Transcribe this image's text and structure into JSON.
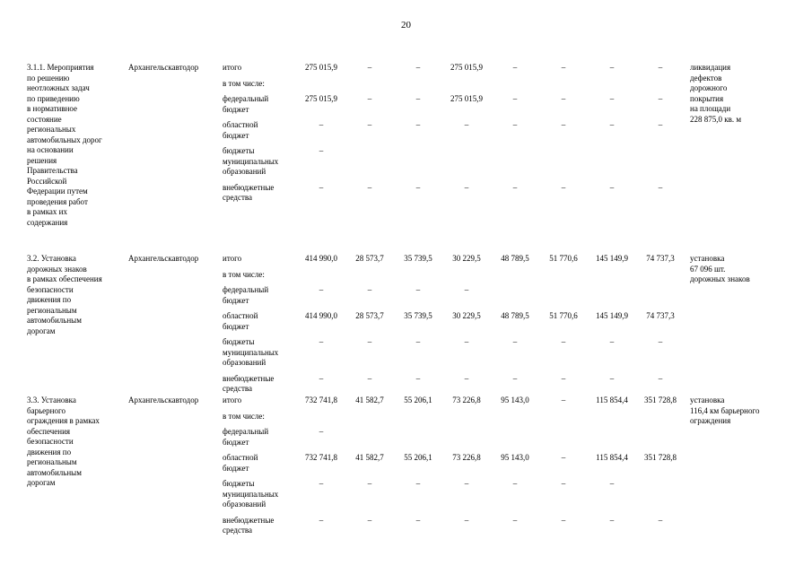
{
  "page": {
    "number": "20"
  },
  "table": {
    "rows": [
      {
        "desc": "3.1.1.  Мероприятия\nпо решению\nнеотложных задач\nпо приведению\nв нормативное\nсостояние\nрегиональных\nавтомобильных дорог\nна основании\nрешения\nПравительства\nРоссийской\nФедерации  путем\nпроведения работ\nв рамках их\nсодержания",
        "executor": "Архангельскавтодор",
        "result": "ликвидация\nдефектов\nдорожного\nпокрытия\nна площади\n228 875,0  кв. м",
        "lines": [
          {
            "label": "итого",
            "values": [
              "275 015,9",
              "–",
              "–",
              "275 015,9",
              "–",
              "–",
              "–",
              "–"
            ]
          },
          {
            "label": "в том числе:",
            "values": [
              "",
              "",
              "",
              "",
              "",
              "",
              "",
              ""
            ]
          },
          {
            "label": "федеральный\nбюджет",
            "values": [
              "275 015,9",
              "–",
              "–",
              "275 015,9",
              "–",
              "–",
              "–",
              "–"
            ]
          },
          {
            "label": "областной\nбюджет",
            "values": [
              "–",
              "–",
              "–",
              "–",
              "–",
              "–",
              "–",
              "–"
            ]
          },
          {
            "label": "бюджеты\nмуниципальных\nобразований",
            "values": [
              "–",
              "",
              "",
              "",
              "",
              "",
              "",
              ""
            ]
          },
          {
            "label": "внебюджетные\nсредства",
            "values": [
              "–",
              "–",
              "–",
              "–",
              "–",
              "–",
              "–",
              "–"
            ]
          }
        ]
      },
      {
        "desc": "3.2. Установка\nдорожных знаков\nв рамках обеспечения\nбезопасности\nдвижения по\nрегиональным\nавтомобильным\nдорогам",
        "executor": "Архангельскавтодор",
        "result": "установка\n67 096 шт.\nдорожных знаков",
        "lines": [
          {
            "label": "итого",
            "values": [
              "414 990,0",
              "28 573,7",
              "35 739,5",
              "30 229,5",
              "48 789,5",
              "51 770,6",
              "145 149,9",
              "74 737,3"
            ]
          },
          {
            "label": "в том числе:",
            "values": [
              "",
              "",
              "",
              "",
              "",
              "",
              "",
              ""
            ]
          },
          {
            "label": "федеральный\nбюджет",
            "values": [
              "–",
              "–",
              "–",
              "–",
              "",
              "",
              "",
              ""
            ]
          },
          {
            "label": "областной\nбюджет",
            "values": [
              "414 990,0",
              "28 573,7",
              "35 739,5",
              "30 229,5",
              "48 789,5",
              "51 770,6",
              "145 149,9",
              "74 737,3"
            ]
          },
          {
            "label": "бюджеты\nмуниципальных\nобразований",
            "values": [
              "–",
              "–",
              "–",
              "–",
              "–",
              "–",
              "–",
              "–"
            ]
          },
          {
            "label": "внебюджетные\nсредства",
            "values": [
              "–",
              "–",
              "–",
              "–",
              "–",
              "–",
              "–",
              "–"
            ]
          }
        ]
      },
      {
        "desc": "3.3. Установка\nбарьерного\nограждения в рамках\nобеспечения\nбезопасности\nдвижения по\nрегиональным\nавтомобильным\nдорогам",
        "executor": "Архангельскавтодор",
        "result": "установка\n116,4 км барьерного\nограждения",
        "lines": [
          {
            "label": "итого",
            "values": [
              "732 741,8",
              "41 582,7",
              "55 206,1",
              "73 226,8",
              "95 143,0",
              "–",
              "115 854,4",
              "351 728,8"
            ]
          },
          {
            "label": "в том числе:",
            "values": [
              "",
              "",
              "",
              "",
              "",
              "",
              "",
              ""
            ]
          },
          {
            "label": "федеральный\nбюджет",
            "values": [
              "–",
              "",
              "",
              "",
              "",
              "",
              "",
              ""
            ]
          },
          {
            "label": "областной\nбюджет",
            "values": [
              "732 741,8",
              "41 582,7",
              "55 206,1",
              "73 226,8",
              "95 143,0",
              "–",
              "115 854,4",
              "351 728,8"
            ]
          },
          {
            "label": "бюджеты\nмуниципальных\nобразований",
            "values": [
              "–",
              "–",
              "–",
              "–",
              "–",
              "–",
              "–",
              ""
            ]
          },
          {
            "label": "внебюджетные\nсредства",
            "values": [
              "–",
              "–",
              "–",
              "–",
              "–",
              "–",
              "–",
              "–"
            ]
          }
        ]
      }
    ]
  }
}
